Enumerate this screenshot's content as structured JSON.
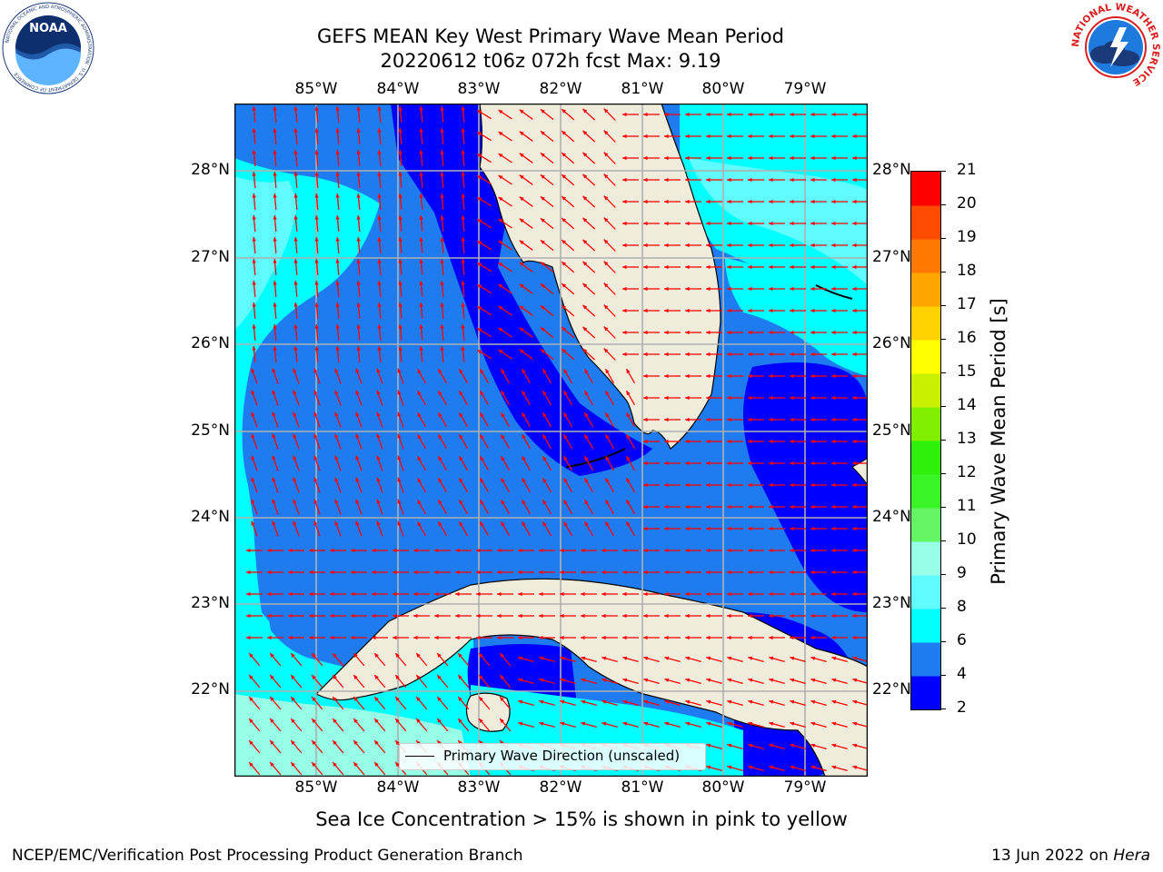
{
  "header": {
    "title_line1": "GEFS MEAN Key West Primary Wave Mean Period",
    "title_line2": "20220612 t06z 072h fcst   Max: 9.19"
  },
  "map": {
    "lon_labels": [
      "85°W",
      "84°W",
      "83°W",
      "82°W",
      "81°W",
      "80°W",
      "79°W"
    ],
    "lat_labels": [
      "28°N",
      "27°N",
      "26°N",
      "25°N",
      "24°N",
      "23°N",
      "22°N"
    ],
    "legend_label": "Primary Wave Direction (unscaled)",
    "arrow_color": "#ff0000",
    "land_color": "#efecdc"
  },
  "colorbar": {
    "label": "Primary Wave Mean Period [s]",
    "ticks": [
      "2",
      "4",
      "6",
      "8",
      "9",
      "10",
      "11",
      "12",
      "13",
      "14",
      "15",
      "16",
      "17",
      "18",
      "19",
      "20",
      "21"
    ],
    "colors": [
      "#0000ff",
      "#1e7cf0",
      "#00ffff",
      "#5ffbff",
      "#96ffe6",
      "#64f564",
      "#3af526",
      "#2ef00a",
      "#80f000",
      "#c8f000",
      "#ffff00",
      "#ffd200",
      "#ffa500",
      "#ff7800",
      "#ff4b00",
      "#ff0000"
    ]
  },
  "notes": {
    "sea_ice": "Sea Ice Concentration > 15% is shown in pink to yellow"
  },
  "footer": {
    "left": "NCEP/EMC/Verification Post Processing Product Generation Branch",
    "date": "13 Jun 2022 on ",
    "machine": "Hera"
  },
  "logos": {
    "noaa_text": "NOAA",
    "noaa_ring_text": "NATIONAL OCEANIC AND ATMOSPHERIC ADMINISTRATION · U.S. DEPARTMENT OF COMMERCE",
    "nws_ring_text": "NATIONAL WEATHER SERVICE"
  }
}
